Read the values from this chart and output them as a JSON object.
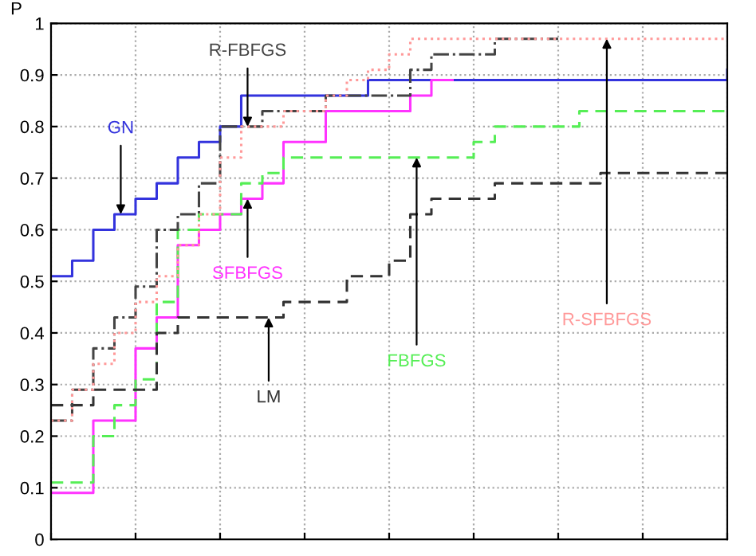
{
  "chart_data": {
    "type": "step",
    "ylabel": "P",
    "categories": [
      null,
      null,
      null,
      null,
      null,
      null,
      null,
      null,
      null,
      null,
      null,
      null,
      null,
      null,
      null,
      null,
      null,
      null,
      null,
      null,
      null,
      null,
      null,
      null,
      null,
      null,
      null,
      null,
      null,
      null,
      null,
      null,
      null
    ],
    "ylim": [
      0,
      1
    ],
    "yticks": [
      0,
      0.1,
      0.2,
      0.3,
      0.4,
      0.5,
      0.6,
      0.7,
      0.8,
      0.9,
      1
    ],
    "grid": true,
    "series": [
      {
        "name": "GN",
        "color": "#3333dd",
        "line_style": "solid",
        "values": [
          0.51,
          0.54,
          0.6,
          0.63,
          0.66,
          0.69,
          0.74,
          0.77,
          0.8,
          0.86,
          0.86,
          0.86,
          0.86,
          0.86,
          0.86,
          0.89,
          0.89,
          0.89,
          0.89,
          0.89,
          0.89,
          0.89,
          0.89,
          0.89,
          0.89,
          0.89,
          0.89,
          0.89,
          0.89,
          0.89,
          0.89,
          0.89,
          0.91
        ]
      },
      {
        "name": "SFBFGS",
        "color": "#ff33ff",
        "line_style": "solid",
        "values": [
          0.09,
          0.09,
          0.23,
          0.23,
          0.37,
          0.43,
          0.57,
          0.6,
          0.63,
          0.66,
          0.69,
          0.77,
          0.77,
          0.83,
          0.83,
          0.83,
          0.83,
          0.86,
          0.89,
          0.89,
          null,
          null,
          null,
          null,
          null,
          null,
          null,
          null,
          null,
          null,
          null,
          null,
          null
        ]
      },
      {
        "name": "FBFGS",
        "color": "#55ee55",
        "line_style": "dashed",
        "values": [
          0.11,
          0.11,
          0.2,
          0.26,
          0.31,
          0.46,
          0.6,
          0.63,
          0.63,
          0.69,
          0.71,
          0.74,
          0.74,
          0.74,
          0.74,
          0.74,
          0.74,
          0.74,
          0.74,
          0.74,
          0.77,
          0.8,
          0.8,
          0.8,
          0.8,
          0.83,
          0.83,
          0.83,
          0.83,
          0.83,
          0.83,
          0.83,
          0.83
        ]
      },
      {
        "name": "LM",
        "color": "#333333",
        "line_style": "dashed",
        "values": [
          0.26,
          0.26,
          0.29,
          0.29,
          0.29,
          0.4,
          0.43,
          0.43,
          0.43,
          0.43,
          0.43,
          0.46,
          0.46,
          0.46,
          0.51,
          0.51,
          0.54,
          0.63,
          0.66,
          0.66,
          0.66,
          0.69,
          0.69,
          0.69,
          0.69,
          0.69,
          0.71,
          0.71,
          0.71,
          0.71,
          0.71,
          0.71,
          0.71
        ]
      },
      {
        "name": "R-FBFGS",
        "color": "#444444",
        "line_style": "dashdot",
        "values": [
          0.23,
          0.29,
          0.37,
          0.43,
          0.49,
          0.6,
          0.63,
          0.69,
          0.8,
          0.8,
          0.83,
          0.83,
          0.83,
          0.86,
          0.86,
          0.86,
          0.86,
          0.91,
          0.94,
          0.94,
          0.94,
          0.97,
          0.97,
          0.97,
          0.97,
          null,
          null,
          null,
          null,
          null,
          null,
          null,
          null
        ]
      },
      {
        "name": "R-SFBFGS",
        "color": "#ff9999",
        "line_style": "dotted",
        "values": [
          0.23,
          0.29,
          0.34,
          0.4,
          0.46,
          0.51,
          0.57,
          0.63,
          0.74,
          0.8,
          0.8,
          0.83,
          0.83,
          0.86,
          0.89,
          0.91,
          0.94,
          0.97,
          0.97,
          0.97,
          0.97,
          0.97,
          0.97,
          0.97,
          0.97,
          0.97,
          0.97,
          0.97,
          0.97,
          0.97,
          0.97,
          0.97,
          0.97
        ]
      }
    ]
  }
}
